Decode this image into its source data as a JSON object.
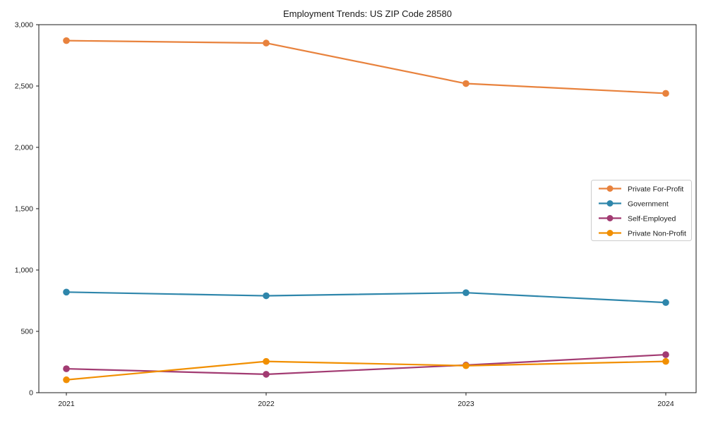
{
  "title": "Employment Trends: US ZIP Code 28580",
  "chart_data": {
    "type": "line",
    "title": "Employment Trends: US ZIP Code 28580",
    "x": [
      2021,
      2022,
      2023,
      2024
    ],
    "xtick_labels": [
      "2021",
      "2022",
      "2023",
      "2024"
    ],
    "yticks": [
      0,
      500,
      1000,
      1500,
      2000,
      2500,
      3000
    ],
    "ytick_labels": [
      "0",
      "500",
      "1,000",
      "1,500",
      "2,000",
      "2,500",
      "3,000"
    ],
    "ylim": [
      0,
      3000
    ],
    "grid": false,
    "legend_position": "center-right",
    "series": [
      {
        "name": "Private For-Profit",
        "color": "#E8823D",
        "values": [
          2870,
          2850,
          2520,
          2440
        ]
      },
      {
        "name": "Government",
        "color": "#2E86AB",
        "values": [
          820,
          790,
          815,
          735
        ]
      },
      {
        "name": "Self-Employed",
        "color": "#A23B72",
        "values": [
          195,
          150,
          225,
          310
        ]
      },
      {
        "name": "Private Non-Profit",
        "color": "#F18F01",
        "values": [
          105,
          255,
          220,
          255
        ]
      }
    ],
    "axis_color": "#1a1a1a",
    "legend_border_color": "#cccccc",
    "background_color": "#ffffff"
  }
}
